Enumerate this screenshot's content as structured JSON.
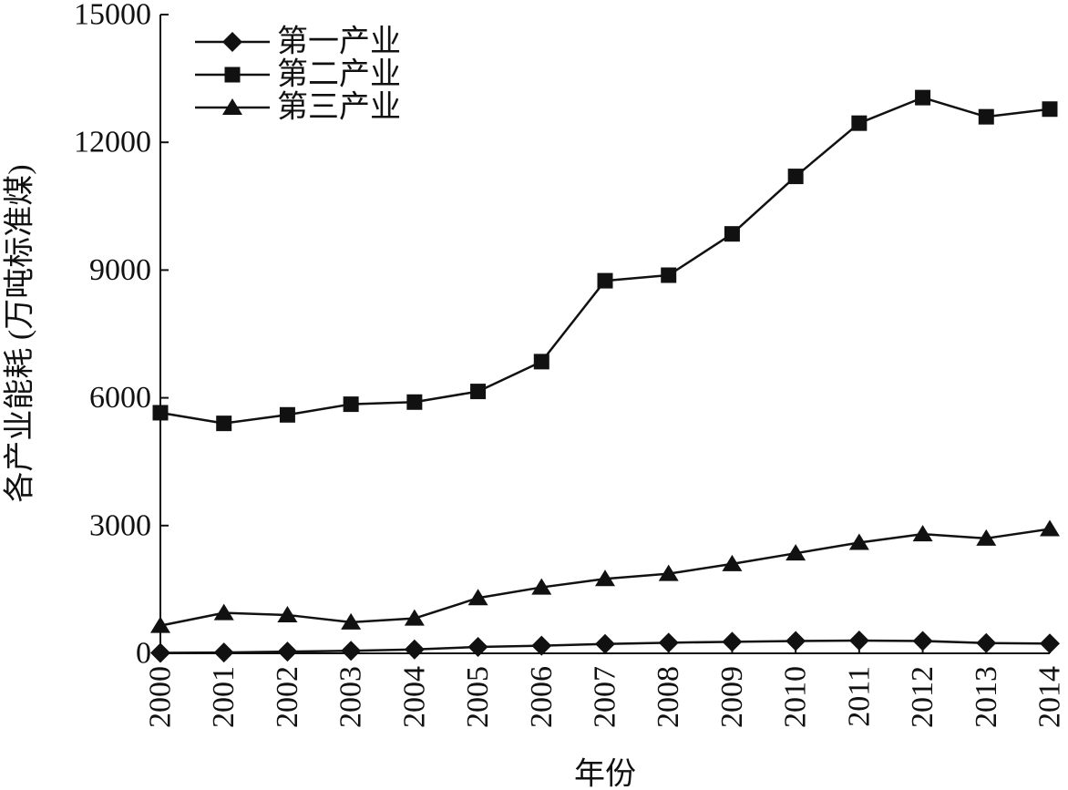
{
  "chart_data": {
    "type": "line",
    "title": "",
    "xlabel": "年份",
    "ylabel": "各产业能耗 (万吨标准煤)",
    "x": [
      "2000",
      "2001",
      "2002",
      "2003",
      "2004",
      "2005",
      "2006",
      "2007",
      "2008",
      "2009",
      "2010",
      "2011",
      "2012",
      "2013",
      "2014"
    ],
    "ylim": [
      0,
      15000
    ],
    "yticks": [
      0,
      3000,
      6000,
      9000,
      12000,
      15000
    ],
    "grid": false,
    "legend_position": "top-left",
    "series": [
      {
        "name": "第一产业",
        "marker": "diamond",
        "values": [
          10,
          20,
          40,
          60,
          90,
          150,
          180,
          220,
          250,
          270,
          290,
          300,
          290,
          240,
          230
        ]
      },
      {
        "name": "第二产业",
        "marker": "square",
        "values": [
          5650,
          5400,
          5600,
          5850,
          5900,
          6150,
          6850,
          8750,
          8880,
          9850,
          11200,
          12450,
          13050,
          12600,
          12780
        ]
      },
      {
        "name": "第三产业",
        "marker": "triangle",
        "values": [
          650,
          950,
          900,
          730,
          820,
          1300,
          1550,
          1750,
          1870,
          2100,
          2350,
          2600,
          2800,
          2700,
          2920
        ]
      }
    ]
  }
}
